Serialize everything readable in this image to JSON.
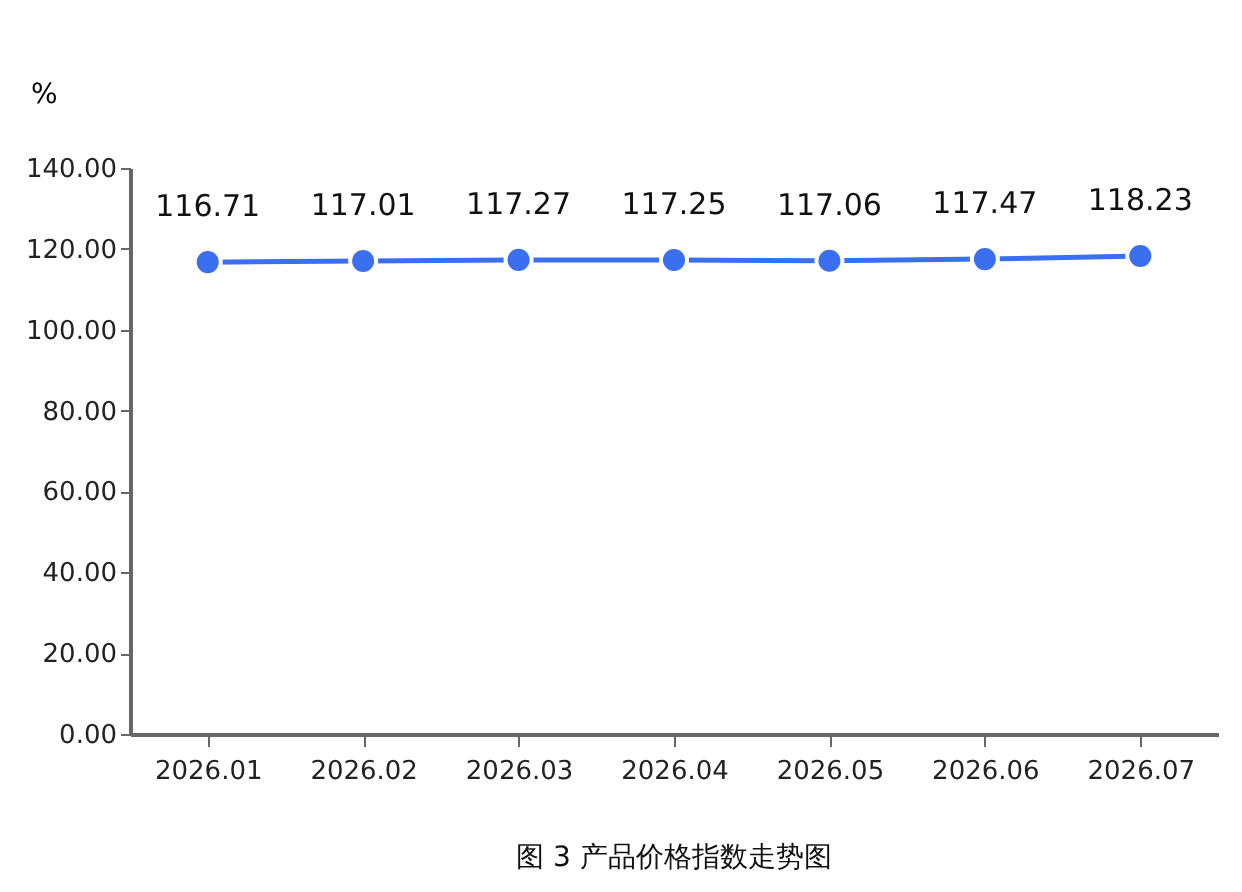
{
  "chart_data": {
    "type": "line",
    "title": "图 3 产品价格指数走势图",
    "ylabel": "%",
    "categories": [
      "2026.01",
      "2026.02",
      "2026.03",
      "2026.04",
      "2026.05",
      "2026.06",
      "2026.07"
    ],
    "series": [
      {
        "color": "#3a6ff0",
        "values": [
          116.71,
          117.01,
          117.27,
          117.25,
          117.06,
          117.47,
          118.23
        ]
      }
    ],
    "ylim": [
      0,
      140
    ],
    "yticks": [
      {
        "value": 0,
        "label": "0.00"
      },
      {
        "value": 20,
        "label": "20.00"
      },
      {
        "value": 40,
        "label": "40.00"
      },
      {
        "value": 60,
        "label": "60.00"
      },
      {
        "value": 80,
        "label": "80.00"
      },
      {
        "value": 100,
        "label": "100.00"
      },
      {
        "value": 120,
        "label": "120.00"
      },
      {
        "value": 140,
        "label": "140.00"
      }
    ],
    "data_labels": true,
    "marker": "circle",
    "grid": false
  }
}
